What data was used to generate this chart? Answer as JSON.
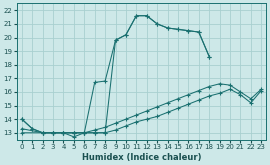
{
  "title": "",
  "xlabel": "Humidex (Indice chaleur)",
  "background_color": "#cde8e8",
  "grid_color": "#a8d0d0",
  "line_color": "#1a7070",
  "xlim": [
    -0.5,
    23.5
  ],
  "ylim": [
    12.5,
    22.5
  ],
  "xticks": [
    0,
    1,
    2,
    3,
    4,
    5,
    6,
    7,
    8,
    9,
    10,
    11,
    12,
    13,
    14,
    15,
    16,
    17,
    18,
    19,
    20,
    21,
    22,
    23
  ],
  "yticks": [
    13,
    14,
    15,
    16,
    17,
    18,
    19,
    20,
    21,
    22
  ],
  "lines": [
    {
      "x": [
        0,
        1,
        2,
        3,
        4,
        5,
        6,
        7,
        8,
        9,
        10,
        11,
        12,
        13,
        14,
        15,
        16,
        17,
        18
      ],
      "y": [
        14,
        13.3,
        13,
        13,
        13,
        13,
        13,
        13,
        13,
        19.8,
        20.2,
        21.6,
        21.6,
        21.0,
        20.7,
        20.6,
        20.5,
        20.4,
        18.6
      ]
    },
    {
      "x": [
        0,
        1,
        2,
        3,
        4,
        5,
        6,
        7,
        8,
        9,
        10,
        11,
        12,
        13,
        14,
        15,
        16,
        17,
        18
      ],
      "y": [
        14,
        13.3,
        13,
        13,
        13,
        12.7,
        13,
        16.7,
        16.8,
        19.8,
        20.2,
        21.6,
        21.6,
        21.0,
        20.7,
        20.6,
        20.5,
        20.4,
        18.6
      ]
    },
    {
      "x": [
        0,
        2,
        3,
        4,
        5,
        6,
        7,
        8,
        9,
        10,
        11,
        12,
        13,
        14,
        15,
        16,
        17,
        18,
        19,
        20,
        21,
        22,
        23
      ],
      "y": [
        13.3,
        13.0,
        13.0,
        13.0,
        13.0,
        13.0,
        13.2,
        13.4,
        13.7,
        14.0,
        14.3,
        14.6,
        14.9,
        15.2,
        15.5,
        15.8,
        16.1,
        16.4,
        16.6,
        16.5,
        16.0,
        15.5,
        16.2
      ]
    },
    {
      "x": [
        0,
        2,
        3,
        4,
        5,
        6,
        7,
        8,
        9,
        10,
        11,
        12,
        13,
        14,
        15,
        16,
        17,
        18,
        19,
        20,
        21,
        22,
        23
      ],
      "y": [
        13.0,
        13.0,
        13.0,
        13.0,
        13.0,
        13.0,
        13.0,
        13.0,
        13.2,
        13.5,
        13.8,
        14.0,
        14.2,
        14.5,
        14.8,
        15.1,
        15.4,
        15.7,
        15.9,
        16.2,
        15.8,
        15.2,
        16.1
      ]
    }
  ]
}
